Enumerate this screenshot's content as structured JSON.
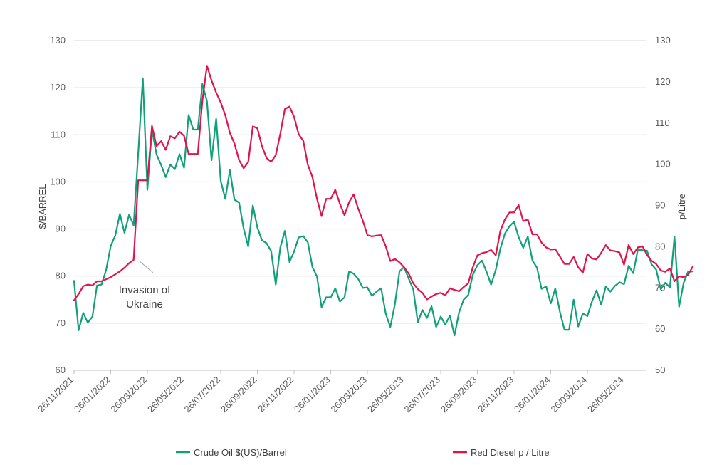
{
  "chart_data": {
    "type": "line",
    "title": "",
    "x_tick_labels": [
      "26/11/2021",
      "26/01/2022",
      "26/03/2022",
      "26/05/2022",
      "26/07/2022",
      "26/09/2022",
      "26/11/2022",
      "26/01/2023",
      "26/03/2023",
      "26/05/2023",
      "26/07/2023",
      "26/09/2023",
      "26/11/2023",
      "26/01/2024",
      "26/03/2024",
      "26/05/2024"
    ],
    "left_axis": {
      "label": "$/BARREL",
      "min": 60,
      "max": 130,
      "ticks": [
        60,
        70,
        80,
        90,
        100,
        110,
        120,
        130
      ]
    },
    "right_axis": {
      "label": "p/Litre",
      "min": 50,
      "max": 130,
      "ticks": [
        50,
        60,
        70,
        80,
        90,
        100,
        110,
        120,
        130
      ]
    },
    "annotation": {
      "line1": "Invasion of",
      "line2": "Ukraine",
      "date_index": 13.8,
      "value": 77
    },
    "series": [
      {
        "name": "Crude Oil $(US)/Barrel",
        "axis": "left",
        "color": "#12a07a",
        "values": [
          79,
          68.5,
          72.2,
          70.1,
          71.4,
          78,
          78.2,
          81.3,
          86.4,
          88.6,
          93.2,
          89.2,
          93,
          90.8,
          106,
          122,
          98.3,
          111,
          105.8,
          103.6,
          101,
          103.7,
          102.7,
          105.9,
          103,
          114.2,
          111.1,
          111.1,
          120.8,
          117.1,
          104.6,
          113.4,
          100.2,
          96.4,
          102.5,
          96.2,
          95.6,
          90.1,
          86.3,
          95,
          90.3,
          87.6,
          87,
          85.3,
          78.2,
          86.1,
          89.6,
          83,
          85.2,
          88.2,
          88.5,
          87.2,
          81.9,
          79.9,
          73.4,
          75.5,
          75.5,
          77.4,
          74.6,
          75.5,
          81,
          80.5,
          79.4,
          77.5,
          77.6,
          75.8,
          76.7,
          77.4,
          72,
          69.2,
          74,
          81,
          81.9,
          79.5,
          77.2,
          70.2,
          72.8,
          71.1,
          73.6,
          69.2,
          71.4,
          69.7,
          71.6,
          67.4,
          72.3,
          75,
          76,
          80.3,
          82.3,
          83.3,
          80.9,
          78.2,
          81.3,
          85.8,
          89,
          90.6,
          91.5,
          88.3,
          86,
          88.4,
          83.3,
          81.8,
          77.3,
          77.8,
          74.2,
          77.4,
          72.4,
          68.6,
          68.6,
          75,
          69.3,
          72.1,
          71.5,
          74.6,
          77,
          73.9,
          77.8,
          76.7,
          77.9,
          78.7,
          78.3,
          82.2,
          80.6,
          85.6,
          85.5,
          85.4,
          82.5,
          81.4,
          77.2,
          78.6,
          77.6,
          88.4,
          73.5,
          78.6,
          81,
          81
        ]
      },
      {
        "name": "Red Diesel p / Litre",
        "axis": "right",
        "color": "#e0144c",
        "values": [
          67,
          68.5,
          70.4,
          70.8,
          70.6,
          71.6,
          71.6,
          72.1,
          72.6,
          73.3,
          74,
          74.9,
          76,
          76.8,
          96.1,
          96.1,
          96.1,
          109.3,
          104.4,
          105.6,
          103.5,
          106.8,
          106.3,
          107.9,
          106.9,
          102.5,
          102.5,
          102.5,
          115.5,
          123.9,
          120.3,
          117.4,
          115,
          111.9,
          107.6,
          105,
          101,
          99,
          100.5,
          109.2,
          108.7,
          104.4,
          101.5,
          100.6,
          102.2,
          107.4,
          113.4,
          114,
          111.5,
          107.3,
          105.7,
          99.9,
          96.9,
          91.6,
          87.4,
          91.6,
          91.6,
          93.8,
          90.4,
          87.6,
          90.8,
          92.7,
          89.2,
          86.3,
          82.8,
          82.5,
          82.7,
          82.8,
          80.1,
          76.5,
          77,
          76.2,
          75,
          73.5,
          71.1,
          69.7,
          68.8,
          67.2,
          67.9,
          68.5,
          68.8,
          68.2,
          69.9,
          69.5,
          69.2,
          70.2,
          71.1,
          75,
          77.9,
          78.4,
          78.7,
          79.2,
          77.9,
          83.8,
          86.6,
          88.3,
          88.3,
          90.1,
          86.2,
          86.6,
          83,
          83,
          81,
          79.8,
          79.3,
          79.4,
          77.6,
          75.8,
          75.8,
          77.5,
          75,
          73.7,
          78.2,
          77.1,
          76.9,
          78.5,
          80.4,
          79.1,
          78.9,
          78.6,
          75.6,
          80.4,
          78.2,
          79.8,
          80.1,
          78,
          76.6,
          75.8,
          74.2,
          73.9,
          74.7,
          71.6,
          72.8,
          72.6,
          73.2,
          75.2
        ]
      }
    ]
  }
}
